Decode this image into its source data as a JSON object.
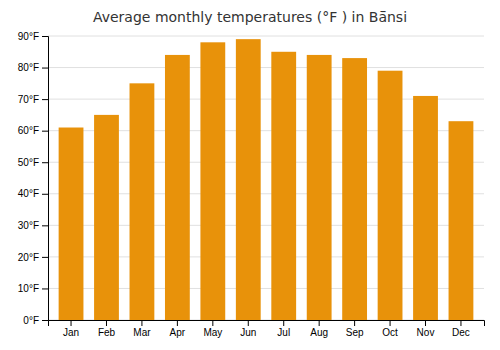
{
  "chart_data": {
    "type": "bar",
    "title": "Average monthly temperatures (°F ) in Bā̄nsi",
    "categories": [
      "Jan",
      "Feb",
      "Mar",
      "Apr",
      "May",
      "Jun",
      "Jul",
      "Aug",
      "Sep",
      "Oct",
      "Nov",
      "Dec"
    ],
    "values": [
      61,
      65,
      75,
      84,
      88,
      89,
      85,
      84,
      83,
      79,
      71,
      63
    ],
    "color": "#E8920A",
    "ylim": [
      0,
      90
    ],
    "yticks": [
      {
        "value": 0,
        "label": "0°F"
      },
      {
        "value": 10,
        "label": "10°F"
      },
      {
        "value": 20,
        "label": "20°F"
      },
      {
        "value": 30,
        "label": "30°F"
      },
      {
        "value": 40,
        "label": "40°F"
      },
      {
        "value": 50,
        "label": "50°F"
      },
      {
        "value": 60,
        "label": "60°F"
      },
      {
        "value": 70,
        "label": "70°F"
      },
      {
        "value": 80,
        "label": "80°F"
      },
      {
        "value": 90,
        "label": "90°F"
      }
    ],
    "grid": true
  }
}
